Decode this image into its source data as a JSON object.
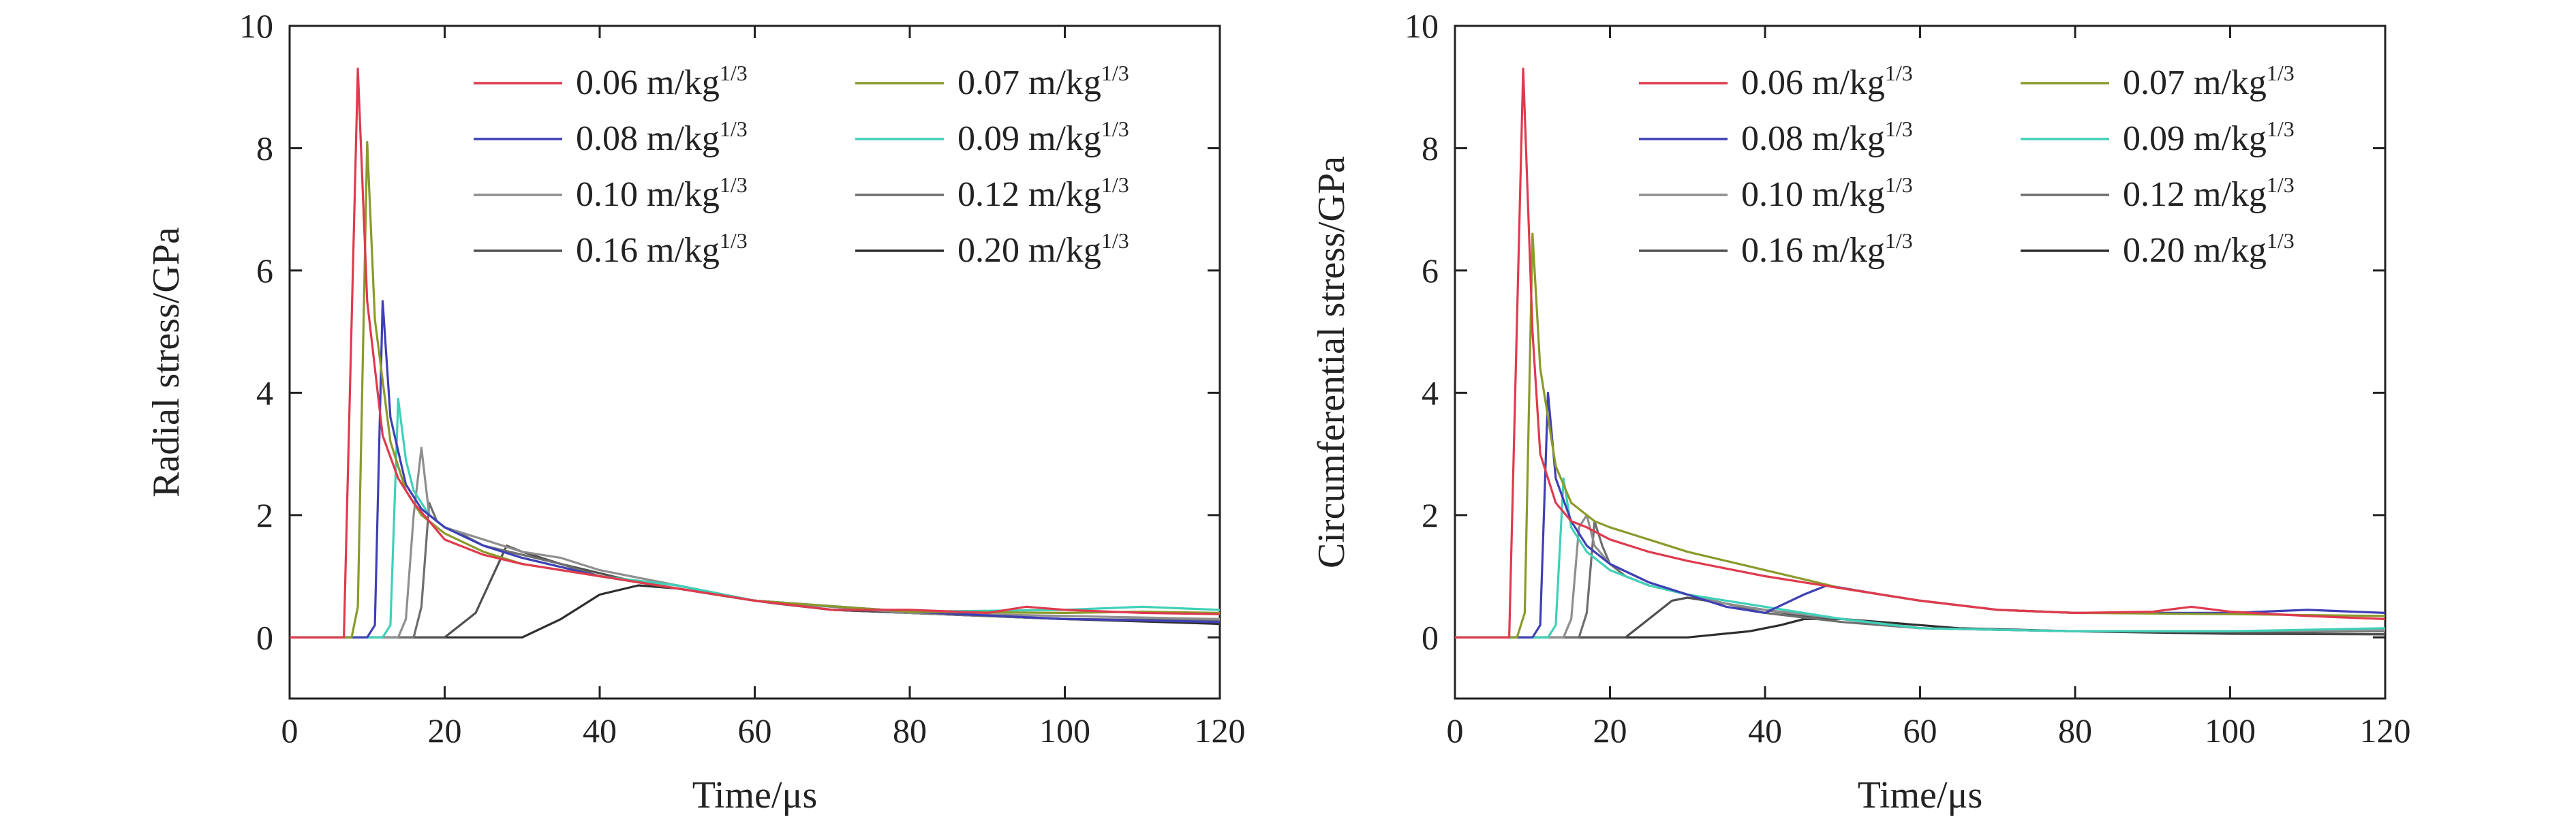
{
  "figure": {
    "panels": 2
  },
  "chart_data": [
    {
      "type": "line",
      "xlabel": "Time/μs",
      "ylabel": "Radial stress/GPa",
      "xlim": [
        0,
        120
      ],
      "ylim": [
        -1,
        10
      ],
      "x_ticks": [
        "0",
        "20",
        "40",
        "60",
        "80",
        "100",
        "120"
      ],
      "y_ticks": [
        "0",
        "2",
        "4",
        "6",
        "8",
        "10"
      ],
      "grid": false,
      "legend_placement": "top-right",
      "series": [
        {
          "name": "0.06 m/kg1/3",
          "color": "#e03a4e",
          "x": [
            0,
            7,
            8.8,
            10,
            12,
            14,
            16,
            18,
            20,
            25,
            30,
            40,
            50,
            60,
            70,
            80,
            90,
            95,
            100,
            110,
            120
          ],
          "y": [
            0,
            0,
            9.3,
            5.5,
            3.3,
            2.6,
            2.2,
            1.9,
            1.6,
            1.35,
            1.2,
            1.0,
            0.8,
            0.6,
            0.45,
            0.45,
            0.4,
            0.5,
            0.45,
            0.4,
            0.38
          ]
        },
        {
          "name": "0.07 m/kg1/3",
          "color": "#8a9a2b",
          "x": [
            0,
            8,
            8.8,
            10,
            11,
            13,
            15,
            17,
            20,
            25,
            30,
            40,
            50,
            60,
            80,
            100,
            110,
            120
          ],
          "y": [
            0,
            0,
            0.5,
            8.1,
            5.2,
            3.2,
            2.4,
            2.0,
            1.7,
            1.4,
            1.2,
            1.0,
            0.8,
            0.6,
            0.42,
            0.4,
            0.42,
            0.4
          ]
        },
        {
          "name": "0.08 m/kg1/3",
          "color": "#3f3fb5",
          "x": [
            0,
            10,
            11,
            12,
            13,
            15,
            17,
            20,
            25,
            30,
            40,
            50,
            60,
            80,
            100,
            110,
            120
          ],
          "y": [
            0,
            0,
            0.2,
            5.5,
            3.6,
            2.5,
            2.1,
            1.8,
            1.5,
            1.3,
            1.0,
            0.8,
            0.6,
            0.42,
            0.3,
            0.28,
            0.25
          ]
        },
        {
          "name": "0.09 m/kg1/3",
          "color": "#3fd0b8",
          "x": [
            0,
            12,
            13,
            14,
            15,
            16,
            18,
            20,
            25,
            30,
            40,
            50,
            60,
            80,
            100,
            110,
            120
          ],
          "y": [
            0,
            0,
            0.2,
            3.9,
            2.9,
            2.4,
            2.0,
            1.8,
            1.5,
            1.3,
            1.0,
            0.85,
            0.6,
            0.42,
            0.45,
            0.5,
            0.45
          ]
        },
        {
          "name": "0.10 m/kg1/3",
          "color": "#8f8f8f",
          "x": [
            0,
            14,
            15,
            16,
            17,
            18,
            20,
            25,
            30,
            35,
            40,
            50,
            60,
            80,
            100,
            120
          ],
          "y": [
            0,
            0,
            0.3,
            2.0,
            3.1,
            2.0,
            1.8,
            1.6,
            1.4,
            1.3,
            1.1,
            0.85,
            0.6,
            0.4,
            0.35,
            0.3
          ]
        },
        {
          "name": "0.12 m/kg1/3",
          "color": "#6e6e6e",
          "x": [
            0,
            16,
            17,
            18,
            19,
            20,
            22,
            25,
            30,
            35,
            40,
            50,
            60,
            80,
            100,
            120
          ],
          "y": [
            0,
            0,
            0.5,
            2.2,
            1.9,
            1.8,
            1.7,
            1.5,
            1.35,
            1.2,
            1.0,
            0.85,
            0.6,
            0.4,
            0.3,
            0.28
          ]
        },
        {
          "name": "0.16 m/kg1/3",
          "color": "#505050",
          "x": [
            0,
            20,
            24,
            28,
            30,
            35,
            40,
            45,
            50,
            60,
            70,
            80,
            100,
            120
          ],
          "y": [
            0,
            0,
            0.4,
            1.5,
            1.4,
            1.2,
            1.05,
            0.9,
            0.8,
            0.6,
            0.45,
            0.4,
            0.3,
            0.25
          ]
        },
        {
          "name": "0.20 m/kg1/3",
          "color": "#2e2e2e",
          "x": [
            0,
            30,
            35,
            40,
            45,
            50,
            55,
            60,
            63,
            70,
            80,
            100,
            120
          ],
          "y": [
            0,
            0,
            0.3,
            0.7,
            0.85,
            0.8,
            0.7,
            0.6,
            0.55,
            0.45,
            0.4,
            0.3,
            0.22
          ]
        }
      ]
    },
    {
      "type": "line",
      "xlabel": "Time/μs",
      "ylabel": "Circumferential stress/GPa",
      "xlim": [
        0,
        120
      ],
      "ylim": [
        -1,
        10
      ],
      "x_ticks": [
        "0",
        "20",
        "40",
        "60",
        "80",
        "100",
        "120"
      ],
      "y_ticks": [
        "0",
        "2",
        "4",
        "6",
        "8",
        "10"
      ],
      "grid": false,
      "legend_placement": "top-right",
      "series": [
        {
          "name": "0.06 m/kg1/3",
          "color": "#e03a4e",
          "x": [
            0,
            7,
            8.8,
            10,
            11,
            13,
            15,
            17,
            20,
            25,
            30,
            40,
            50,
            60,
            70,
            80,
            90,
            95,
            100,
            110,
            120
          ],
          "y": [
            0,
            0,
            9.3,
            5.0,
            3.0,
            2.2,
            1.9,
            1.8,
            1.6,
            1.4,
            1.25,
            1.0,
            0.8,
            0.6,
            0.45,
            0.4,
            0.42,
            0.5,
            0.42,
            0.35,
            0.3
          ]
        },
        {
          "name": "0.07 m/kg1/3",
          "color": "#8a9a2b",
          "x": [
            0,
            8,
            9,
            10,
            11,
            13,
            15,
            18,
            20,
            25,
            30,
            40,
            50,
            60,
            70,
            80,
            100,
            120
          ],
          "y": [
            0,
            0,
            0.4,
            6.6,
            4.4,
            2.8,
            2.2,
            1.9,
            1.8,
            1.6,
            1.4,
            1.1,
            0.8,
            0.6,
            0.45,
            0.4,
            0.38,
            0.35
          ]
        },
        {
          "name": "0.08 m/kg1/3",
          "color": "#3f3fb5",
          "x": [
            0,
            10,
            11,
            12,
            13,
            15,
            17,
            20,
            25,
            30,
            35,
            40,
            45,
            48,
            55,
            60,
            70,
            80,
            100,
            110,
            120
          ],
          "y": [
            0,
            0,
            0.2,
            4.0,
            2.6,
            1.9,
            1.5,
            1.2,
            0.9,
            0.7,
            0.5,
            0.4,
            0.7,
            0.85,
            0.7,
            0.6,
            0.45,
            0.4,
            0.4,
            0.45,
            0.4
          ]
        },
        {
          "name": "0.09 m/kg1/3",
          "color": "#3fd0b8",
          "x": [
            0,
            12,
            13,
            14,
            15,
            17,
            20,
            25,
            30,
            35,
            40,
            50,
            60,
            80,
            100,
            120
          ],
          "y": [
            0,
            0,
            0.2,
            2.6,
            1.8,
            1.4,
            1.1,
            0.85,
            0.7,
            0.6,
            0.5,
            0.3,
            0.15,
            0.1,
            0.1,
            0.15
          ]
        },
        {
          "name": "0.10 m/kg1/3",
          "color": "#8f8f8f",
          "x": [
            0,
            14,
            15,
            16,
            17,
            18,
            20,
            25,
            30,
            35,
            40,
            50,
            60,
            80,
            100,
            120
          ],
          "y": [
            0,
            0,
            0.3,
            1.8,
            2.0,
            1.5,
            1.2,
            0.9,
            0.7,
            0.55,
            0.45,
            0.3,
            0.15,
            0.1,
            0.1,
            0.12
          ]
        },
        {
          "name": "0.12 m/kg1/3",
          "color": "#6e6e6e",
          "x": [
            0,
            16,
            17,
            18,
            19,
            20,
            22,
            25,
            30,
            35,
            40,
            50,
            60,
            80,
            100,
            120
          ],
          "y": [
            0,
            0,
            0.4,
            1.9,
            1.5,
            1.2,
            1.0,
            0.85,
            0.7,
            0.55,
            0.4,
            0.25,
            0.15,
            0.1,
            0.1,
            0.1
          ]
        },
        {
          "name": "0.16 m/kg1/3",
          "color": "#505050",
          "x": [
            0,
            22,
            26,
            28,
            30,
            35,
            40,
            45,
            50,
            60,
            80,
            100,
            120
          ],
          "y": [
            0,
            0,
            0.4,
            0.6,
            0.65,
            0.55,
            0.45,
            0.35,
            0.3,
            0.15,
            0.1,
            0.08,
            0.05
          ]
        },
        {
          "name": "0.20 m/kg1/3",
          "color": "#2e2e2e",
          "x": [
            0,
            30,
            38,
            42,
            45,
            50,
            55,
            60,
            65,
            80,
            100,
            120
          ],
          "y": [
            0,
            0,
            0.1,
            0.2,
            0.3,
            0.3,
            0.25,
            0.2,
            0.15,
            0.1,
            0.06,
            0.05
          ]
        }
      ]
    }
  ]
}
